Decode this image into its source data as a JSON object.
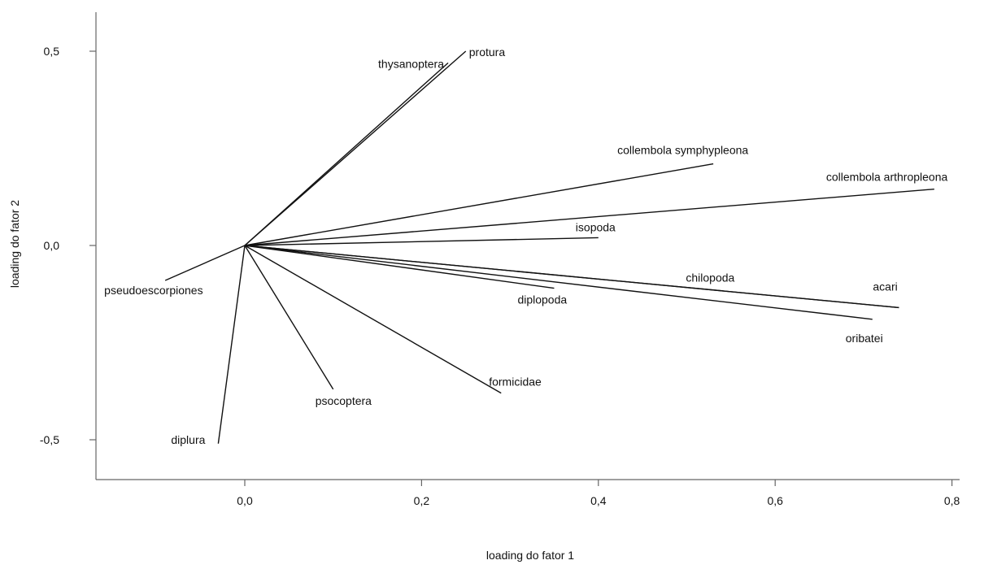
{
  "chart_data": {
    "type": "biplot",
    "title": "",
    "xlabel": "loading do fator 1",
    "ylabel": "loading do fator 2",
    "xlim": [
      -0.17,
      0.85
    ],
    "ylim": [
      -0.6,
      0.6
    ],
    "grid": false,
    "x_ticks": [
      {
        "value": 0.0,
        "label": "0,0"
      },
      {
        "value": 0.2,
        "label": "0,2"
      },
      {
        "value": 0.4,
        "label": "0,4"
      },
      {
        "value": 0.6,
        "label": "0,6"
      },
      {
        "value": 0.8,
        "label": "0,8"
      }
    ],
    "y_ticks": [
      {
        "value": 0.5,
        "label": "0,5"
      },
      {
        "value": 0.0,
        "label": "0,0"
      },
      {
        "value": -0.5,
        "label": "-0,5"
      }
    ],
    "vectors": [
      {
        "name": "thysanoptera",
        "x": 0.23,
        "y": 0.47
      },
      {
        "name": "protura",
        "x": 0.25,
        "y": 0.5
      },
      {
        "name": "collembola symphypleona",
        "x": 0.53,
        "y": 0.21
      },
      {
        "name": "collembola arthropleona",
        "x": 0.78,
        "y": 0.145
      },
      {
        "name": "isopoda",
        "x": 0.4,
        "y": 0.02
      },
      {
        "name": "chilopoda",
        "x": 0.74,
        "y": -0.16
      },
      {
        "name": "acari",
        "x": 0.74,
        "y": -0.16
      },
      {
        "name": "oribatei",
        "x": 0.71,
        "y": -0.19
      },
      {
        "name": "diplopoda",
        "x": 0.35,
        "y": -0.11
      },
      {
        "name": "pseudoescorpiones",
        "x": -0.09,
        "y": -0.09
      },
      {
        "name": "formicidae",
        "x": 0.29,
        "y": -0.38
      },
      {
        "name": "psocoptera",
        "x": 0.1,
        "y": -0.37
      },
      {
        "name": "diplura",
        "x": -0.03,
        "y": -0.51
      }
    ]
  }
}
